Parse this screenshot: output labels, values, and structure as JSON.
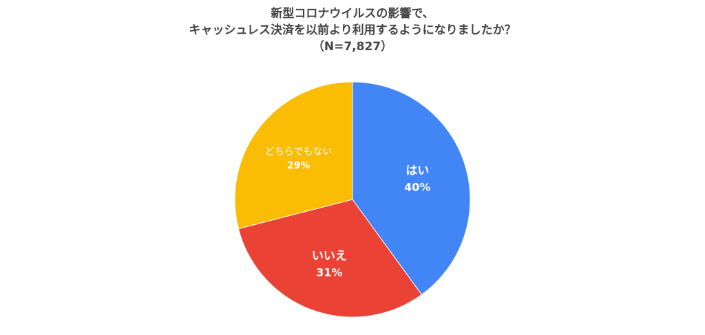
{
  "chart_data": {
    "type": "pie",
    "title_lines": [
      "新型コロナウイルスの影響で、",
      "キャッシュレス決済を以前より利用するようになりましたか？",
      "（N=7,827）"
    ],
    "slices": [
      {
        "label": "はい",
        "value": 40,
        "display": "40%",
        "color": "#4285f4"
      },
      {
        "label": "いいえ",
        "value": 31,
        "display": "31%",
        "color": "#ea4335"
      },
      {
        "label": "どちらでもない",
        "value": 29,
        "display": "29%",
        "color": "#fbbc04"
      }
    ],
    "legend": "none"
  }
}
